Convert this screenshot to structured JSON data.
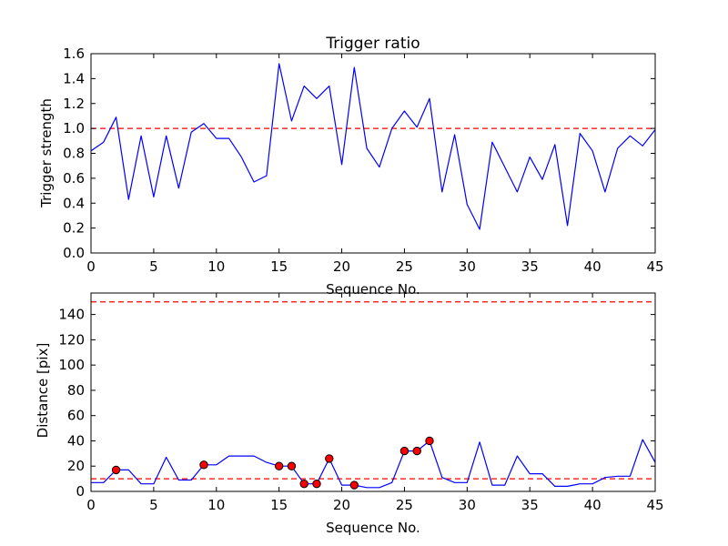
{
  "colors": {
    "line": "#0000ff",
    "threshold": "#ff0000",
    "marker_fill": "#ff0000",
    "axes": "#000000",
    "background": "#ffffff"
  },
  "chart_data": [
    {
      "type": "line",
      "title": "Trigger ratio",
      "xlabel": "Sequence No.",
      "ylabel": "Trigger strength",
      "xlim": [
        0,
        45
      ],
      "ylim": [
        0,
        1.6
      ],
      "xticks": [
        "0",
        "5",
        "10",
        "15",
        "20",
        "25",
        "30",
        "35",
        "40",
        "45"
      ],
      "yticks": [
        "0.0",
        "0.2",
        "0.4",
        "0.6",
        "0.8",
        "1.0",
        "1.2",
        "1.4",
        "1.6"
      ],
      "grid": false,
      "x": [
        0,
        1,
        2,
        3,
        4,
        5,
        6,
        7,
        8,
        9,
        10,
        11,
        12,
        13,
        14,
        15,
        16,
        17,
        18,
        19,
        20,
        21,
        22,
        23,
        24,
        25,
        26,
        27,
        28,
        29,
        30,
        31,
        32,
        33,
        34,
        35,
        36,
        37,
        38,
        39,
        40,
        41,
        42,
        43,
        44,
        45
      ],
      "series": [
        {
          "style": "solid",
          "values": [
            0.82,
            0.89,
            1.09,
            0.43,
            0.94,
            0.45,
            0.94,
            0.52,
            0.97,
            1.04,
            0.92,
            0.92,
            0.77,
            0.57,
            0.62,
            1.52,
            1.06,
            1.34,
            1.24,
            1.34,
            0.71,
            1.49,
            0.84,
            0.69,
            1.0,
            1.14,
            1.01,
            1.24,
            0.49,
            0.95,
            0.39,
            0.19,
            0.89,
            0.69,
            0.49,
            0.77,
            0.59,
            0.87,
            0.22,
            0.96,
            0.82,
            0.49,
            0.84,
            0.94,
            0.86,
            0.99
          ]
        }
      ],
      "reference_lines": [
        {
          "y": 1.0,
          "style": "dashed"
        }
      ]
    },
    {
      "type": "line",
      "title": "",
      "xlabel": "Sequence No.",
      "ylabel": "Distance [pix]",
      "xlim": [
        0,
        45
      ],
      "ylim": [
        0,
        157
      ],
      "xticks": [
        "0",
        "5",
        "10",
        "15",
        "20",
        "25",
        "30",
        "35",
        "40",
        "45"
      ],
      "yticks": [
        "0",
        "20",
        "40",
        "60",
        "80",
        "100",
        "120",
        "140"
      ],
      "grid": false,
      "x": [
        0,
        1,
        2,
        3,
        4,
        5,
        6,
        7,
        8,
        9,
        10,
        11,
        12,
        13,
        14,
        15,
        16,
        17,
        18,
        19,
        20,
        21,
        22,
        23,
        24,
        25,
        26,
        27,
        28,
        29,
        30,
        31,
        32,
        33,
        34,
        35,
        36,
        37,
        38,
        39,
        40,
        41,
        42,
        43,
        44,
        45
      ],
      "series": [
        {
          "style": "solid",
          "values": [
            7,
            7,
            17,
            17,
            6,
            6,
            27,
            9,
            9,
            21,
            21,
            28,
            28,
            28,
            23,
            20,
            20,
            6,
            6,
            26,
            5,
            5,
            3,
            3,
            7,
            32,
            32,
            40,
            11,
            7,
            7,
            39,
            5,
            5,
            28,
            14,
            14,
            4,
            4,
            6,
            6,
            11,
            12,
            12,
            41,
            23
          ]
        },
        {
          "style": "markers",
          "points": [
            {
              "x": 2,
              "y": 17
            },
            {
              "x": 9,
              "y": 21
            },
            {
              "x": 15,
              "y": 20
            },
            {
              "x": 16,
              "y": 20
            },
            {
              "x": 17,
              "y": 6
            },
            {
              "x": 18,
              "y": 6
            },
            {
              "x": 19,
              "y": 26
            },
            {
              "x": 21,
              "y": 5
            },
            {
              "x": 25,
              "y": 32
            },
            {
              "x": 26,
              "y": 32
            },
            {
              "x": 27,
              "y": 40
            }
          ]
        }
      ],
      "reference_lines": [
        {
          "y": 150,
          "style": "dashed"
        },
        {
          "y": 10,
          "style": "dashed"
        }
      ]
    }
  ]
}
